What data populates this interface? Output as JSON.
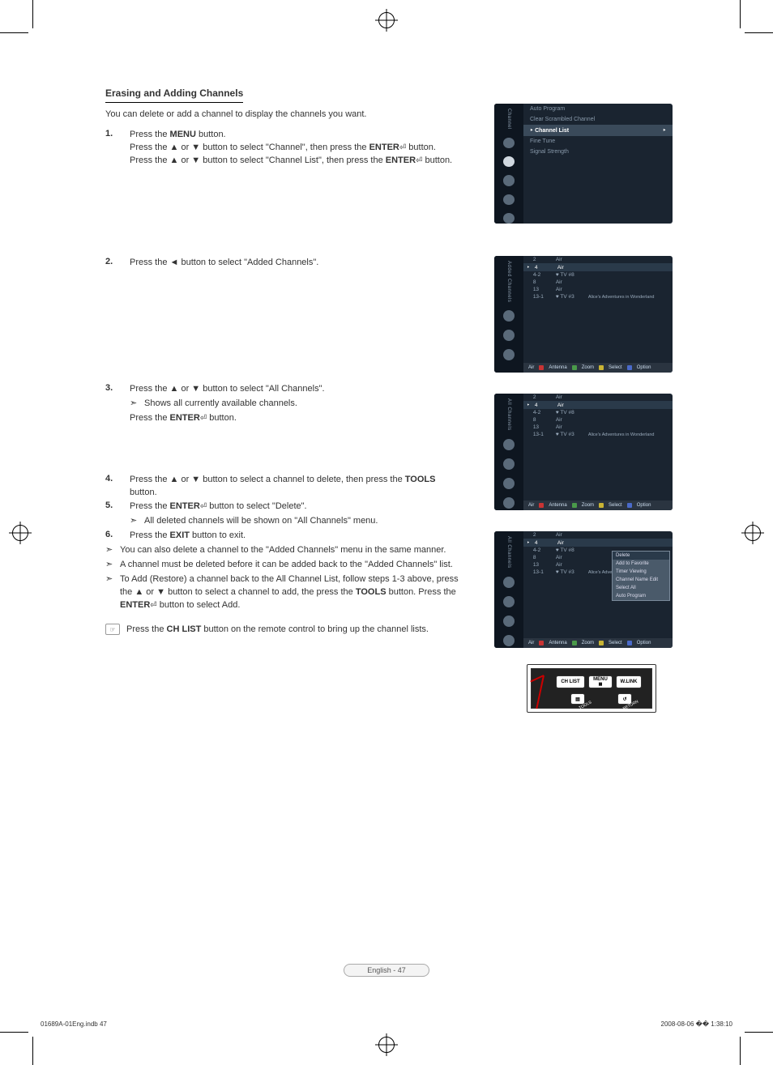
{
  "section_title": "Erasing and Adding Channels",
  "intro": "You can delete or add a channel to display the channels you want.",
  "steps": {
    "s1": {
      "num": "1.",
      "l1a": "Press the ",
      "l1b": "MENU",
      "l1c": " button.",
      "l2a": "Press the ▲ or ▼ button to select \"Channel\", then press the ",
      "l2b": "ENTER",
      "l2c": " button.",
      "l3a": "Press the ▲ or ▼ button to select \"Channel List\", then press the ",
      "l3b": "ENTER",
      "l3c": " button."
    },
    "s2": {
      "num": "2.",
      "text": "Press the ◄ button to select \"Added Channels\"."
    },
    "s3": {
      "num": "3.",
      "l1": "Press the ▲ or ▼ button to select \"All Channels\".",
      "sub": "Shows all currently available channels.",
      "l2a": "Press the ",
      "l2b": "ENTER",
      "l2c": " button."
    },
    "s4": {
      "num": "4.",
      "l1a": "Press the ▲ or ▼ button to select a channel to delete, then press the ",
      "l1b": "TOOLS",
      "l1c": " button."
    },
    "s5": {
      "num": "5.",
      "l1a": "Press the ",
      "l1b": "ENTER",
      "l1c": " button to select \"Delete\".",
      "sub": "All deleted channels will be shown on \"All Channels\" menu."
    },
    "s6": {
      "num": "6.",
      "l1a": "Press the ",
      "l1b": "EXIT",
      "l1c": " button to exit."
    },
    "sub_a": "You can also delete a channel to the \"Added Channels\" menu in the same manner.",
    "sub_b": "A channel must be deleted before it can be added back to the \"Added Channels\" list.",
    "sub_c1": "To Add (Restore) a channel back to the All Channel List, follow steps 1-3 above, press the ▲ or ▼ button to select a channel to add, the press the ",
    "sub_c2": "TOOLS",
    "sub_c3": " button. Press the ",
    "sub_c4": "ENTER",
    "sub_c5": " button to select Add."
  },
  "note": {
    "l1a": "Press the ",
    "l1b": "CH LIST",
    "l1c": " button on the remote control to bring up the channel lists."
  },
  "sub_marker": "➣",
  "note_marker": "☞",
  "enter_glyph": "⏎",
  "osd1": {
    "side_label": "Channel",
    "items": [
      "Auto Program",
      "Clear Scrambled Channel",
      "Channel List",
      "Fine Tune",
      "Signal Strength"
    ]
  },
  "channel_list": {
    "rows": [
      {
        "num": "2",
        "name": "Air",
        "title": ""
      },
      {
        "num": "4",
        "name": "Air",
        "title": ""
      },
      {
        "num": "4-2",
        "name": "♥ TV #8",
        "title": ""
      },
      {
        "num": "8",
        "name": "Air",
        "title": ""
      },
      {
        "num": "13",
        "name": "Air",
        "title": ""
      },
      {
        "num": "13-1",
        "name": "♥ TV #3",
        "title": "Alice's Adventures in Wonderland"
      }
    ],
    "foot": [
      "Air",
      "Antenna",
      "Zoom",
      "Select",
      "Option"
    ],
    "side2": "Added Channels",
    "side3": "All Channels",
    "side4": "All Channels"
  },
  "popup": [
    "Delete",
    "Add to Favorite",
    "Timer Viewing",
    "Channel Name Edit",
    "Select All",
    "Auto Program"
  ],
  "remote": {
    "chlist": "CH LIST",
    "menu": "MENU",
    "wlink": "W.LINK",
    "tools": "TOOLS",
    "return": "RETURN"
  },
  "footer": "English - 47",
  "print": {
    "left": "01689A-01Eng.indb   47",
    "right": "2008-08-06   �� 1:38:10"
  },
  "colors": {
    "osd_bg": "#1a2430",
    "osd_side": "#0e1620",
    "osd_hi": "#3a4a5a",
    "foot_red": "#c93434",
    "foot_green": "#4a9a4a",
    "foot_yellow": "#c9b434",
    "foot_blue": "#4a6ac9"
  }
}
